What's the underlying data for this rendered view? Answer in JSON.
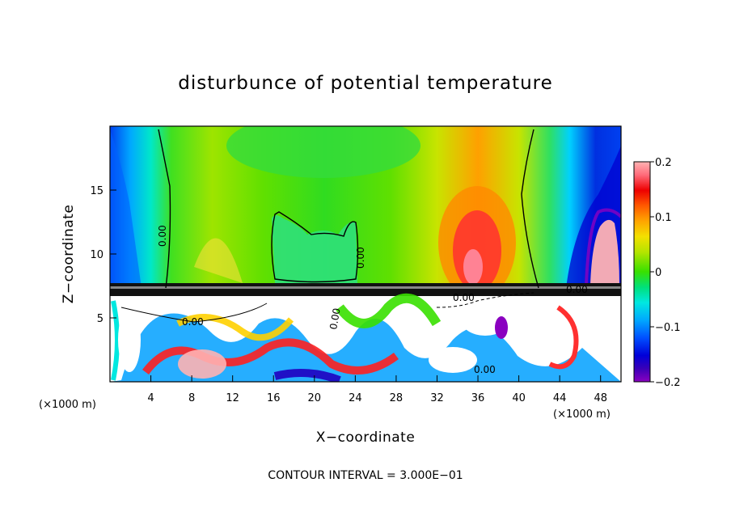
{
  "chart_data": {
    "type": "heatmap",
    "title": "disturbunce of potential temperature",
    "xlabel": "X−coordinate",
    "ylabel": "Z−coordinate",
    "x_unit_label": "(×1000 m)",
    "x_unit_label_right": "(×1000 m)",
    "xlim": [
      0,
      50
    ],
    "ylim": [
      0,
      20
    ],
    "x_ticks": [
      4,
      8,
      12,
      16,
      20,
      24,
      28,
      32,
      36,
      40,
      44,
      48
    ],
    "y_ticks": [
      5,
      10,
      15
    ],
    "colorbar": {
      "range": [
        -0.2,
        0.2
      ],
      "ticks": [
        "0.2",
        "0.1",
        "0",
        "−0.1",
        "−0.2"
      ],
      "tick_values": [
        0.2,
        0.1,
        0,
        -0.1,
        -0.2
      ]
    },
    "contour_labels": [
      "0.00",
      "0.00",
      "0.00",
      "0.00",
      "0.00",
      "0.00",
      "0.00"
    ],
    "footer": "CONTOUR INTERVAL = 3.000E−01"
  }
}
